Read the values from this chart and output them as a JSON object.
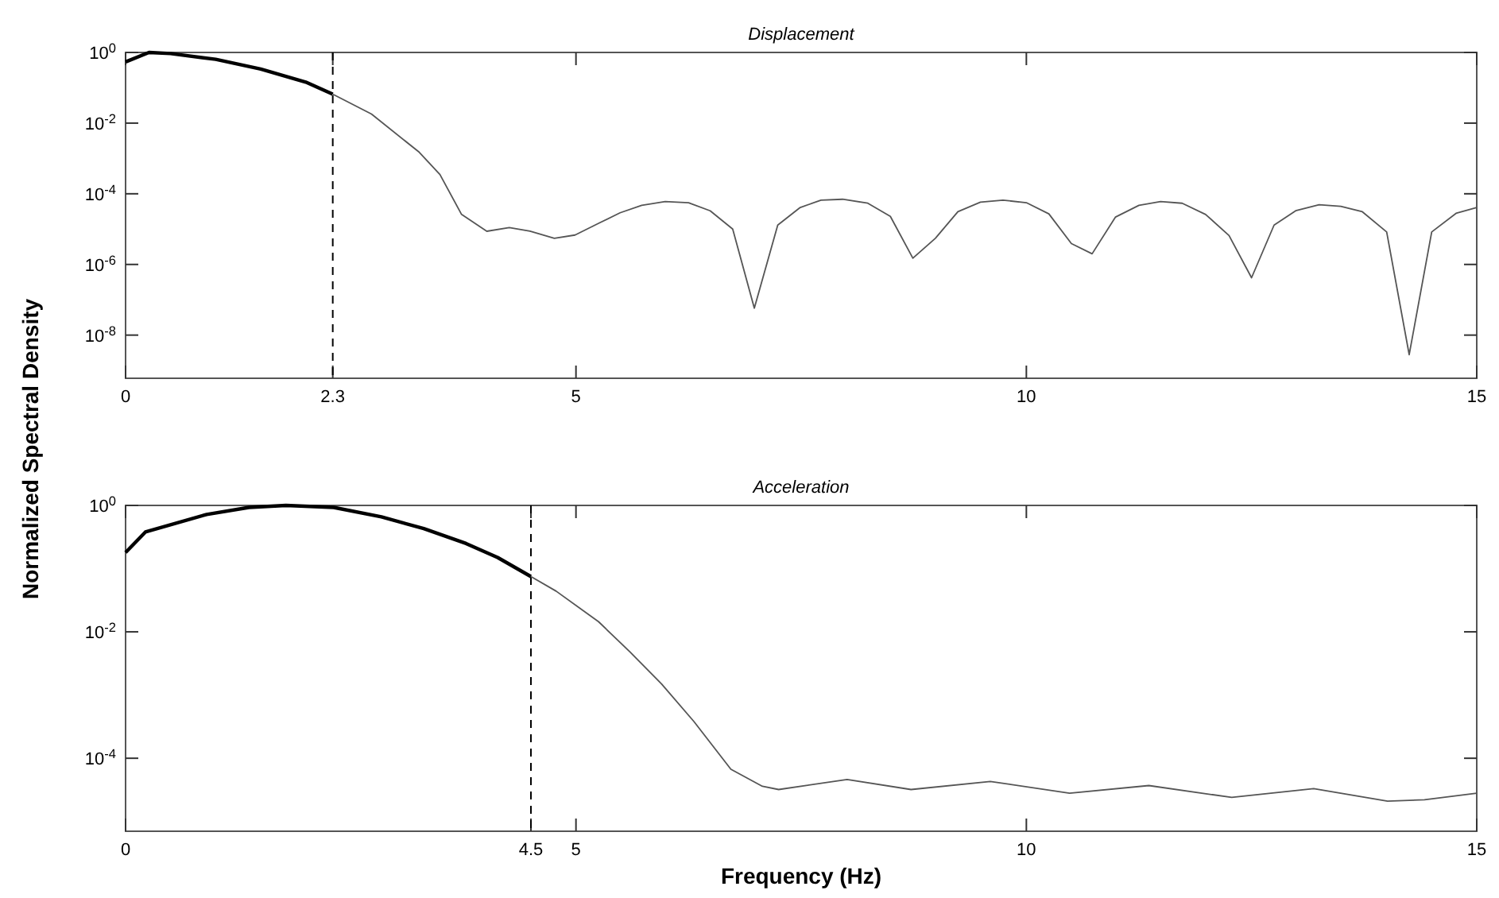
{
  "chart_data": [
    {
      "type": "line",
      "title": "Displacement",
      "ylabel": "Normalized Spectral Density",
      "log": "y",
      "grid": false,
      "marker": "none",
      "xlim": [
        0,
        15
      ],
      "xticks": [
        0,
        2.3,
        5,
        10,
        15
      ],
      "ylim": [
        6e-10,
        1
      ],
      "yticks": [
        {
          "value": 1,
          "label": "10$^{0}$"
        },
        {
          "value": 0.01,
          "label": "10$^{-2}$"
        },
        {
          "value": 0.0001,
          "label": "10$^{-4}$"
        },
        {
          "value": 1e-06,
          "label": "10$^{-6}$"
        },
        {
          "value": 1e-08,
          "label": "10$^{-8}$"
        }
      ],
      "ref_lines": [
        {
          "axis": "x",
          "value": 2.3,
          "color": "#000000",
          "line_style": "dashed"
        }
      ],
      "series": [
        {
          "color": "#000000",
          "x": [
            0,
            0.26,
            0.5,
            1,
            1.5,
            2,
            2.3
          ],
          "values": [
            0.54,
            1,
            0.93,
            0.64,
            0.34,
            0.145,
            0.066
          ]
        },
        {
          "color": "#555555",
          "x": [
            2.3,
            2.73,
            3.26,
            3.49,
            3.73,
            4.01,
            4.26,
            4.49,
            4.76,
            4.99,
            5.26,
            5.49,
            5.73,
            5.99,
            6.25,
            6.49,
            6.74,
            6.98,
            7.24,
            7.49,
            7.72,
            7.96,
            8.24,
            8.49,
            8.74,
            8.99,
            9.24,
            9.49,
            9.74,
            10,
            10.25,
            10.5,
            10.73,
            10.99,
            11.25,
            11.49,
            11.73,
            11.99,
            12.25,
            12.5,
            12.75,
            12.99,
            13.25,
            13.49,
            13.73,
            14,
            14.25,
            14.5,
            14.77,
            15
          ],
          "values": [
            0.066,
            0.018,
            0.0015,
            0.00035,
            2.6e-05,
            8.7e-06,
            1.1e-05,
            8.7e-06,
            5.5e-06,
            6.8e-06,
            1.5e-05,
            2.9e-05,
            4.7e-05,
            6e-05,
            5.6e-05,
            3.3e-05,
            1e-05,
            5.8e-08,
            1.3e-05,
            4.1e-05,
            6.6e-05,
            7e-05,
            5.4e-05,
            2.3e-05,
            1.5e-06,
            5.5e-06,
            3.1e-05,
            5.8e-05,
            6.6e-05,
            5.6e-05,
            2.7e-05,
            3.9e-06,
            2e-06,
            2.2e-05,
            4.7e-05,
            6e-05,
            5.4e-05,
            2.6e-05,
            6.6e-06,
            4.2e-07,
            1.3e-05,
            3.3e-05,
            4.9e-05,
            4.4e-05,
            3.1e-05,
            8.3e-06,
            2.8e-09,
            8.3e-06,
            2.8e-05,
            4.1e-05
          ]
        }
      ]
    },
    {
      "type": "line",
      "title": "Acceleration",
      "xlabel": "Frequency (Hz)",
      "log": "y",
      "grid": false,
      "marker": "none",
      "xlim": [
        0,
        15
      ],
      "xticks": [
        0,
        4.5,
        5,
        10,
        15
      ],
      "ylim": [
        7e-06,
        1
      ],
      "yticks": [
        {
          "value": 1,
          "label": "10$^{0}$"
        },
        {
          "value": 0.01,
          "label": "10$^{-2}$"
        },
        {
          "value": 0.0001,
          "label": "10$^{-4}$"
        }
      ],
      "ref_lines": [
        {
          "axis": "x",
          "value": 4.5,
          "color": "#000000",
          "line_style": "dashed"
        }
      ],
      "series": [
        {
          "color": "#000000",
          "x": [
            0,
            0.22,
            0.9,
            1.37,
            1.78,
            2.31,
            2.84,
            3.31,
            3.78,
            4.13,
            4.5
          ],
          "values": [
            0.18,
            0.38,
            0.72,
            0.93,
            1,
            0.93,
            0.66,
            0.43,
            0.25,
            0.15,
            0.075
          ]
        },
        {
          "color": "#555555",
          "x": [
            4.5,
            4.78,
            5.25,
            5.6,
            5.95,
            6.31,
            6.72,
            7.07,
            7.25,
            8.01,
            8.72,
            9.6,
            10.48,
            11.36,
            12.28,
            13.19,
            14.01,
            14.42,
            15
          ],
          "values": [
            0.075,
            0.044,
            0.0145,
            0.0048,
            0.0015,
            0.00038,
            6.7e-05,
            3.6e-05,
            3.2e-05,
            4.6e-05,
            3.2e-05,
            4.3e-05,
            2.8e-05,
            3.7e-05,
            2.4e-05,
            3.3e-05,
            2.1e-05,
            2.2e-05,
            2.8e-05
          ]
        }
      ]
    }
  ]
}
